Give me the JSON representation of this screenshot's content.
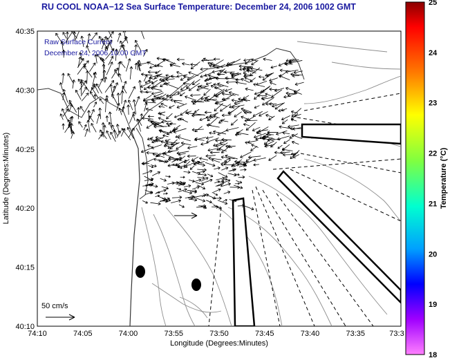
{
  "title": "RU COOL  NOAA−12  Sea Surface Temperature:  December 24, 2006 1002 GMT",
  "annotations": {
    "line1": "Raw Surface Current",
    "line2": "December 24, 2006 10:00 GMT",
    "scale_label": "50 cm/s"
  },
  "axes": {
    "xlabel": "Longitude (Degrees:Minutes)",
    "ylabel": "Latitude (Degrees:Minutes)",
    "xticks": [
      "74:10",
      "74:05",
      "74:00",
      "73:55",
      "73:50",
      "73:45",
      "73:40",
      "73:35",
      "73:3"
    ],
    "yticks": [
      "40:35",
      "40:30",
      "40:25",
      "40:20",
      "40:15",
      "40:10"
    ]
  },
  "colorbar": {
    "label": "Temperature (°C)",
    "ticks": [
      "25",
      "24",
      "23",
      "22",
      "21",
      "20",
      "19",
      "18"
    ],
    "min": 18,
    "max": 25
  },
  "colors": {
    "title": "#1a1aa0",
    "annotation": "#1a1aa0",
    "contour": "#8c8c8c",
    "arrows": "#000000"
  }
}
